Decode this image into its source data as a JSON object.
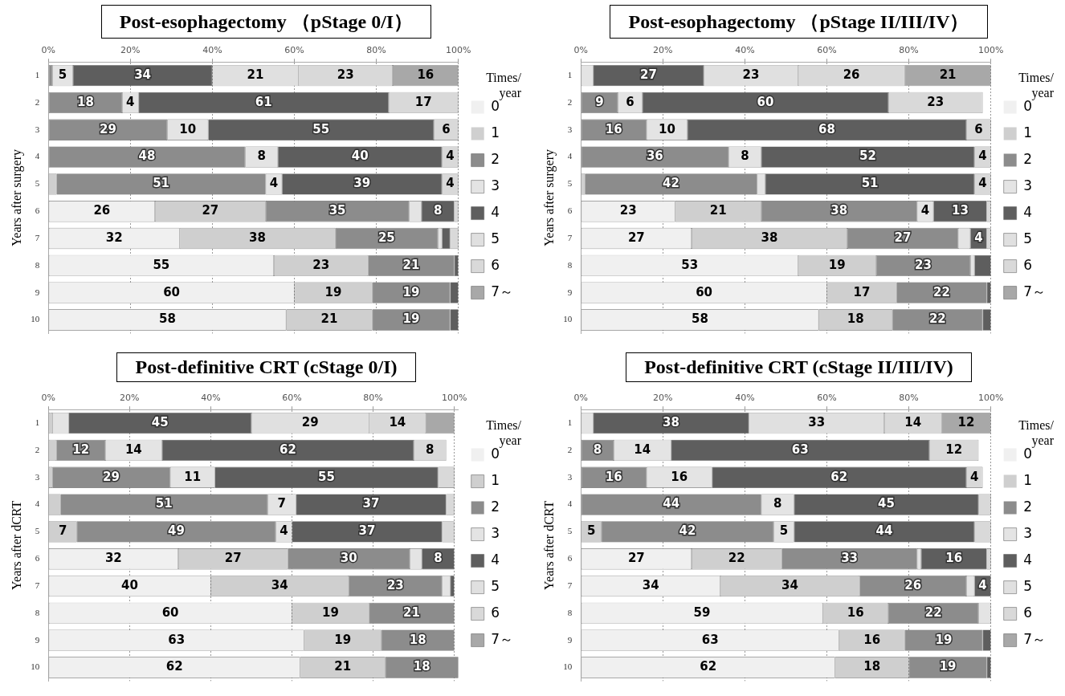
{
  "chart_data": [
    {
      "type": "bar",
      "title": "Post-esophagectomy （pStage 0/I）",
      "ylabel": "Years after surgery",
      "legend_title": "Times/ year",
      "orientation": "horizontal",
      "stacked": true,
      "grid": "x",
      "legend": "right",
      "categories": [
        "1",
        "2",
        "3",
        "4",
        "5",
        "6",
        "7",
        "8",
        "9",
        "10"
      ],
      "xlim": [
        0,
        100
      ],
      "xticks": [
        {
          "value": 0,
          "label": "0%"
        },
        {
          "value": 20,
          "label": "20%"
        },
        {
          "value": 40,
          "label": "40%"
        },
        {
          "value": 60,
          "label": "60%"
        },
        {
          "value": 80,
          "label": "80%"
        },
        {
          "value": 100,
          "label": "100%"
        }
      ],
      "series": [
        {
          "name": "0",
          "color": "#f0f0f0",
          "values": [
            0,
            0,
            0,
            0,
            0,
            26,
            32,
            55,
            60,
            58
          ],
          "value_labels": [
            null,
            null,
            null,
            null,
            null,
            "26",
            "32",
            "55",
            "60",
            "58"
          ]
        },
        {
          "name": "1",
          "color": "#cfcfcf",
          "values": [
            0,
            0,
            0,
            0,
            2,
            27,
            38,
            23,
            19,
            21
          ],
          "value_labels": [
            null,
            null,
            null,
            null,
            null,
            "27",
            "38",
            "23",
            "19",
            "21"
          ]
        },
        {
          "name": "2",
          "color": "#8c8c8c",
          "values": [
            1,
            18,
            29,
            48,
            51,
            35,
            25,
            21,
            19,
            19
          ],
          "value_labels": [
            null,
            "18",
            "29",
            "48",
            "51",
            "35",
            "25",
            "21",
            "19",
            "19"
          ]
        },
        {
          "name": "3",
          "color": "#e4e4e4",
          "values": [
            5,
            4,
            10,
            8,
            4,
            3,
            1,
            0,
            0,
            0
          ],
          "value_labels": [
            "5",
            "4",
            "10",
            "8",
            "4",
            null,
            null,
            null,
            null,
            null
          ]
        },
        {
          "name": "4",
          "color": "#5e5e5e",
          "values": [
            34,
            61,
            55,
            40,
            39,
            8,
            2,
            1,
            2,
            2
          ],
          "value_labels": [
            "34",
            "61",
            "55",
            "40",
            "39",
            "8",
            null,
            null,
            null,
            null
          ]
        },
        {
          "name": "5",
          "color": "#e0e0e0",
          "values": [
            21,
            0,
            0,
            0,
            0,
            0,
            0,
            0,
            0,
            0
          ],
          "value_labels": [
            "21",
            null,
            null,
            null,
            null,
            null,
            null,
            null,
            null,
            null
          ]
        },
        {
          "name": "6",
          "color": "#d9d9d9",
          "values": [
            23,
            17,
            6,
            4,
            4,
            1,
            2,
            0,
            0,
            0
          ],
          "value_labels": [
            "23",
            "17",
            "6",
            "4",
            "4",
            null,
            null,
            null,
            null,
            null
          ]
        },
        {
          "name": "7～",
          "color": "#a8a8a8",
          "values": [
            16,
            0,
            0,
            0,
            0,
            0,
            0,
            0,
            0,
            0
          ],
          "value_labels": [
            "16",
            null,
            null,
            null,
            null,
            null,
            null,
            null,
            null,
            null
          ]
        }
      ]
    },
    {
      "type": "bar",
      "title": "Post-esophagectomy （pStage II/III/IV）",
      "ylabel": "Years after surgery",
      "legend_title": "Times/ year",
      "orientation": "horizontal",
      "stacked": true,
      "grid": "x",
      "legend": "right",
      "categories": [
        "1",
        "2",
        "3",
        "4",
        "5",
        "6",
        "7",
        "8",
        "9",
        "10"
      ],
      "xlim": [
        0,
        100
      ],
      "xticks": [
        {
          "value": 0,
          "label": "0%"
        },
        {
          "value": 20,
          "label": "20%"
        },
        {
          "value": 40,
          "label": "40%"
        },
        {
          "value": 60,
          "label": "60%"
        },
        {
          "value": 80,
          "label": "80%"
        },
        {
          "value": 100,
          "label": "100%"
        }
      ],
      "series": [
        {
          "name": "0",
          "color": "#f0f0f0",
          "values": [
            0,
            0,
            0,
            0,
            0,
            23,
            27,
            53,
            60,
            58
          ],
          "value_labels": [
            null,
            null,
            null,
            null,
            null,
            "23",
            "27",
            "53",
            "60",
            "58"
          ]
        },
        {
          "name": "1",
          "color": "#cfcfcf",
          "values": [
            0,
            0,
            0,
            0,
            1,
            21,
            38,
            19,
            17,
            18
          ],
          "value_labels": [
            null,
            null,
            null,
            null,
            null,
            "21",
            "38",
            "19",
            "17",
            "18"
          ]
        },
        {
          "name": "2",
          "color": "#8c8c8c",
          "values": [
            0,
            9,
            16,
            36,
            42,
            38,
            27,
            23,
            22,
            22
          ],
          "value_labels": [
            null,
            "9",
            "16",
            "36",
            "42",
            "38",
            "27",
            "23",
            "22",
            "22"
          ]
        },
        {
          "name": "3",
          "color": "#e4e4e4",
          "values": [
            3,
            6,
            10,
            8,
            2,
            4,
            3,
            1,
            0,
            0
          ],
          "value_labels": [
            null,
            "6",
            "10",
            "8",
            null,
            "4",
            null,
            null,
            null,
            null
          ]
        },
        {
          "name": "4",
          "color": "#5e5e5e",
          "values": [
            27,
            60,
            68,
            52,
            51,
            13,
            4,
            4,
            1,
            2
          ],
          "value_labels": [
            "27",
            "60",
            "68",
            "52",
            "51",
            "13",
            "4",
            null,
            null,
            null
          ]
        },
        {
          "name": "5",
          "color": "#e0e0e0",
          "values": [
            23,
            0,
            0,
            0,
            0,
            0,
            0,
            0,
            0,
            0
          ],
          "value_labels": [
            "23",
            null,
            null,
            null,
            null,
            null,
            null,
            null,
            null,
            null
          ]
        },
        {
          "name": "6",
          "color": "#d9d9d9",
          "values": [
            26,
            23,
            6,
            4,
            4,
            1,
            1,
            0,
            0,
            0
          ],
          "value_labels": [
            "26",
            "23",
            "6",
            "4",
            "4",
            null,
            null,
            null,
            null,
            null
          ]
        },
        {
          "name": "7～",
          "color": "#a8a8a8",
          "values": [
            21,
            0,
            0,
            0,
            0,
            0,
            0,
            0,
            0,
            0
          ],
          "value_labels": [
            "21",
            null,
            null,
            null,
            null,
            null,
            null,
            null,
            null,
            null
          ]
        }
      ]
    },
    {
      "type": "bar",
      "title": "Post-definitive CRT  (cStage 0/I)",
      "ylabel": "Years after dCRT",
      "legend_title": "Times/ year",
      "orientation": "horizontal",
      "stacked": true,
      "grid": "x",
      "legend": "right",
      "categories": [
        "1",
        "2",
        "3",
        "4",
        "5",
        "6",
        "7",
        "8",
        "9",
        "10"
      ],
      "xlim": [
        0,
        101
      ],
      "xticks": [
        {
          "value": 0,
          "label": "0%"
        },
        {
          "value": 20,
          "label": "20%"
        },
        {
          "value": 40,
          "label": "40%"
        },
        {
          "value": 60,
          "label": "60%"
        },
        {
          "value": 80,
          "label": "80%"
        },
        {
          "value": 100,
          "label": "100%"
        }
      ],
      "series": [
        {
          "name": "0",
          "color": "#f0f0f0",
          "values": [
            0,
            0,
            0,
            0,
            0,
            32,
            40,
            60,
            63,
            62
          ],
          "value_labels": [
            null,
            null,
            null,
            null,
            null,
            "32",
            "40",
            "60",
            "63",
            "62"
          ]
        },
        {
          "name": "1",
          "color": "#cfcfcf",
          "values": [
            1,
            2,
            1,
            3,
            7,
            27,
            34,
            19,
            19,
            21
          ],
          "value_labels": [
            null,
            null,
            null,
            null,
            "7",
            "27",
            "34",
            "19",
            "19",
            "21"
          ]
        },
        {
          "name": "2",
          "color": "#8c8c8c",
          "values": [
            0,
            12,
            29,
            51,
            49,
            30,
            23,
            21,
            18,
            18
          ],
          "value_labels": [
            null,
            "12",
            "29",
            "51",
            "49",
            "30",
            "23",
            "21",
            "18",
            "18"
          ]
        },
        {
          "name": "3",
          "color": "#e4e4e4",
          "values": [
            4,
            14,
            11,
            7,
            4,
            3,
            2,
            0,
            0,
            0
          ],
          "value_labels": [
            null,
            "14",
            "11",
            "7",
            "4",
            null,
            null,
            null,
            null,
            null
          ]
        },
        {
          "name": "4",
          "color": "#5e5e5e",
          "values": [
            45,
            62,
            55,
            37,
            37,
            8,
            1,
            0,
            0,
            0
          ],
          "value_labels": [
            "45",
            "62",
            "55",
            "37",
            "37",
            "8",
            null,
            null,
            null,
            null
          ]
        },
        {
          "name": "5",
          "color": "#e0e0e0",
          "values": [
            29,
            0,
            0,
            0,
            0,
            0,
            0,
            0,
            0,
            0
          ],
          "value_labels": [
            "29",
            null,
            null,
            null,
            null,
            null,
            null,
            null,
            null,
            null
          ]
        },
        {
          "name": "6",
          "color": "#d9d9d9",
          "values": [
            14,
            8,
            4,
            2,
            3,
            0,
            0,
            0,
            0,
            0
          ],
          "value_labels": [
            "14",
            "8",
            null,
            null,
            null,
            null,
            null,
            null,
            null,
            null
          ]
        },
        {
          "name": "7～",
          "color": "#a8a8a8",
          "values": [
            7,
            0,
            0,
            0,
            0,
            0,
            0,
            0,
            0,
            0
          ],
          "value_labels": [
            null,
            null,
            null,
            null,
            null,
            null,
            null,
            null,
            null,
            null
          ]
        }
      ]
    },
    {
      "type": "bar",
      "title": "Post-definitive CRT  (cStage II/III/IV)",
      "ylabel": "Years after dCRT",
      "legend_title": "Times/ year",
      "orientation": "horizontal",
      "stacked": true,
      "grid": "x",
      "legend": "right",
      "categories": [
        "1",
        "2",
        "3",
        "4",
        "5",
        "6",
        "7",
        "8",
        "9",
        "10"
      ],
      "xlim": [
        0,
        100
      ],
      "xticks": [
        {
          "value": 0,
          "label": "0%"
        },
        {
          "value": 20,
          "label": "20%"
        },
        {
          "value": 40,
          "label": "40%"
        },
        {
          "value": 60,
          "label": "60%"
        },
        {
          "value": 80,
          "label": "80%"
        },
        {
          "value": 100,
          "label": "100%"
        }
      ],
      "series": [
        {
          "name": "0",
          "color": "#f0f0f0",
          "values": [
            0,
            0,
            0,
            0,
            0,
            27,
            34,
            59,
            63,
            62
          ],
          "value_labels": [
            null,
            null,
            null,
            null,
            null,
            "27",
            "34",
            "59",
            "63",
            "62"
          ]
        },
        {
          "name": "1",
          "color": "#cfcfcf",
          "values": [
            0,
            0,
            0,
            0,
            5,
            22,
            34,
            16,
            16,
            18
          ],
          "value_labels": [
            null,
            null,
            null,
            null,
            "5",
            "22",
            "34",
            "16",
            "16",
            "18"
          ]
        },
        {
          "name": "2",
          "color": "#8c8c8c",
          "values": [
            0,
            8,
            16,
            44,
            42,
            33,
            26,
            22,
            19,
            19
          ],
          "value_labels": [
            null,
            "8",
            "16",
            "44",
            "42",
            "33",
            "26",
            "22",
            "19",
            "19"
          ]
        },
        {
          "name": "3",
          "color": "#e4e4e4",
          "values": [
            3,
            14,
            16,
            8,
            5,
            1,
            2,
            3,
            0,
            0
          ],
          "value_labels": [
            null,
            "14",
            "16",
            "8",
            "5",
            null,
            null,
            null,
            null,
            null
          ]
        },
        {
          "name": "4",
          "color": "#5e5e5e",
          "values": [
            38,
            63,
            62,
            45,
            44,
            16,
            4,
            0,
            2,
            1
          ],
          "value_labels": [
            "38",
            "63",
            "62",
            "45",
            "44",
            "16",
            "4",
            null,
            null,
            null
          ]
        },
        {
          "name": "5",
          "color": "#e0e0e0",
          "values": [
            33,
            0,
            0,
            0,
            0,
            0,
            0,
            0,
            0,
            0
          ],
          "value_labels": [
            "33",
            null,
            null,
            null,
            null,
            null,
            null,
            null,
            null,
            null
          ]
        },
        {
          "name": "6",
          "color": "#d9d9d9",
          "values": [
            14,
            12,
            4,
            3,
            4,
            1,
            0,
            0,
            0,
            0
          ],
          "value_labels": [
            "14",
            "12",
            "4",
            null,
            null,
            null,
            null,
            null,
            null,
            null
          ]
        },
        {
          "name": "7～",
          "color": "#a8a8a8",
          "values": [
            12,
            0,
            0,
            0,
            0,
            0,
            0,
            0,
            0,
            0
          ],
          "value_labels": [
            "12",
            null,
            null,
            null,
            null,
            null,
            null,
            null,
            null,
            null
          ]
        }
      ]
    }
  ]
}
